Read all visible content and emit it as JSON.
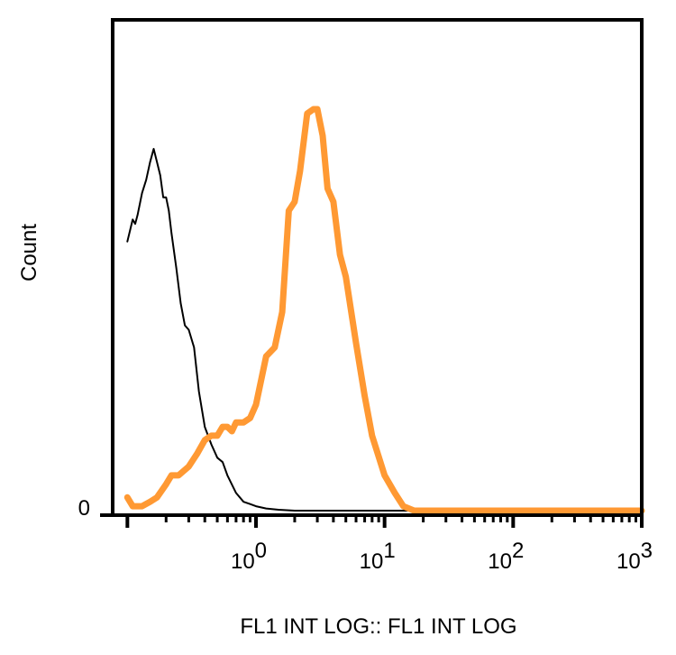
{
  "chart_data": {
    "type": "line",
    "xlabel": "FL1 INT LOG:: FL1 INT LOG",
    "ylabel": "Count",
    "x_scale": "log",
    "xlim": [
      0.1,
      1000
    ],
    "ylim": [
      0,
      100
    ],
    "x_ticks": [
      {
        "value": 1,
        "base": "10",
        "exp": "0"
      },
      {
        "value": 10,
        "base": "10",
        "exp": "1"
      },
      {
        "value": 100,
        "base": "10",
        "exp": "2"
      },
      {
        "value": 1000,
        "base": "10",
        "exp": "3"
      }
    ],
    "y_ticks": [
      {
        "value": 0,
        "label": "0"
      }
    ],
    "grid": false,
    "series": [
      {
        "color": "#000000",
        "x": [
          0.1,
          0.11,
          0.115,
          0.12,
          0.13,
          0.14,
          0.15,
          0.16,
          0.17,
          0.18,
          0.19,
          0.2,
          0.21,
          0.22,
          0.24,
          0.26,
          0.28,
          0.3,
          0.33,
          0.36,
          0.4,
          0.45,
          0.5,
          0.55,
          0.6,
          0.7,
          0.8,
          0.9,
          1.0,
          1.2,
          1.5,
          2,
          3,
          5,
          10,
          100,
          1000
        ],
        "y": [
          61,
          66,
          65,
          67,
          72,
          75,
          79,
          82,
          79,
          76,
          71,
          71,
          68,
          63,
          55,
          47,
          42,
          41,
          37,
          27,
          19,
          15,
          12,
          11,
          8,
          4,
          2,
          1.5,
          1,
          0.5,
          0.2,
          0,
          0,
          0,
          0,
          0,
          0
        ]
      },
      {
        "color": "#FF9933",
        "x": [
          0.1,
          0.11,
          0.13,
          0.15,
          0.17,
          0.2,
          0.22,
          0.25,
          0.3,
          0.35,
          0.4,
          0.45,
          0.5,
          0.55,
          0.6,
          0.65,
          0.7,
          0.8,
          0.9,
          1.0,
          1.2,
          1.4,
          1.6,
          1.8,
          2.0,
          2.2,
          2.5,
          2.8,
          3.0,
          3.3,
          3.6,
          4.0,
          4.5,
          5.0,
          6.0,
          7.0,
          8.0,
          10.0,
          12.0,
          14.0,
          16.0,
          17.0,
          20,
          50,
          100,
          1000
        ],
        "y": [
          3,
          1,
          1,
          2,
          3,
          6,
          8,
          8,
          10,
          13,
          16,
          17,
          17,
          19,
          19,
          18,
          20,
          20,
          21,
          24,
          35,
          37,
          45,
          68,
          70,
          77,
          90,
          91,
          91,
          85,
          73,
          70,
          58,
          53,
          38,
          26,
          17,
          8,
          4,
          1,
          0.3,
          0,
          0,
          0,
          0,
          0
        ]
      }
    ]
  }
}
